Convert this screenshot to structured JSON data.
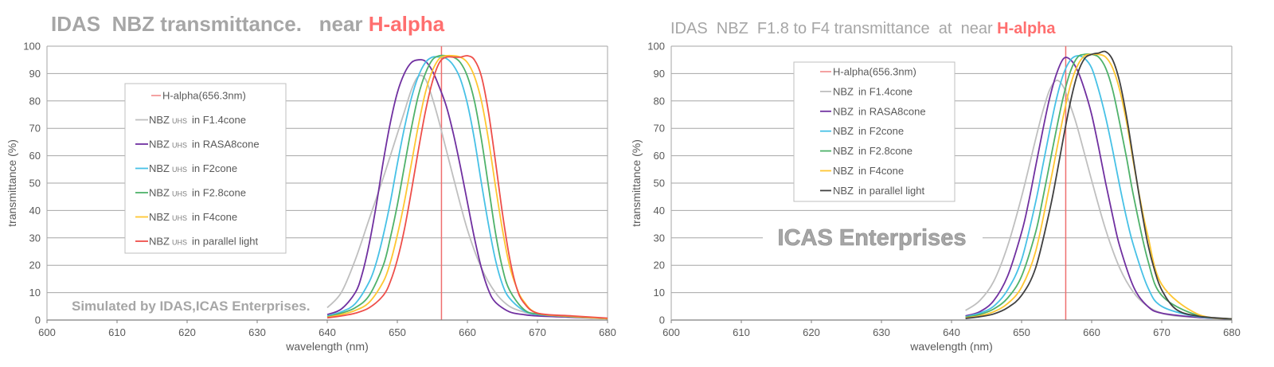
{
  "chart_data": [
    {
      "type": "line",
      "title": "IDAS  NBZ transmittance.   near",
      "title_highlight": "H-alpha",
      "xlabel": "wavelength (nm)",
      "ylabel": "transmittance (%)",
      "xlim": [
        600,
        680
      ],
      "ylim": [
        0,
        100
      ],
      "xticks": [
        "600",
        "610",
        "620",
        "630",
        "640",
        "650",
        "660",
        "670",
        "680"
      ],
      "yticks": [
        "0",
        "10",
        "20",
        "30",
        "40",
        "50",
        "60",
        "70",
        "80",
        "90",
        "100"
      ],
      "grid": true,
      "legend_position": "left",
      "annotation": "Simulated by IDAS,ICAS Enterprises.",
      "marker_line": {
        "name": "H-alpha(656.3nm)",
        "x": 656.3,
        "color": "#ef6f6f"
      },
      "series": [
        {
          "name": "NBZ",
          "sub": "UHS",
          "suffix": "in F1.4cone",
          "color": "#bfbfbf",
          "x": [
            640,
            642,
            644,
            646,
            648,
            650,
            651,
            652,
            653,
            654,
            655,
            656,
            658,
            660,
            662,
            664,
            666,
            668,
            670,
            675,
            680
          ],
          "y": [
            4.5,
            10,
            22,
            37,
            52,
            68,
            76,
            84,
            89,
            88,
            81,
            72,
            52,
            33,
            19,
            10,
            5,
            3,
            2,
            1.2,
            0.5
          ]
        },
        {
          "name": "NBZ",
          "sub": "UHS",
          "suffix": "in RASA8cone",
          "color": "#7030a0",
          "x": [
            640,
            642,
            644,
            645,
            646,
            647,
            648,
            649,
            650,
            651,
            652,
            653,
            654,
            655,
            656,
            657,
            658,
            659,
            660,
            661,
            662,
            663,
            664,
            666,
            668,
            670,
            675,
            680
          ],
          "y": [
            2,
            4,
            10,
            17,
            28,
            42,
            58,
            72,
            83,
            90,
            94,
            95,
            94.5,
            91,
            85,
            78,
            68,
            56,
            43,
            30,
            19,
            11,
            6.5,
            3,
            2,
            1.5,
            1,
            0.5
          ]
        },
        {
          "name": "NBZ",
          "sub": "UHS",
          "suffix": "in F2cone",
          "color": "#47c1e6",
          "x": [
            640,
            642,
            644,
            646,
            647,
            648,
            649,
            650,
            651,
            652,
            653,
            654,
            655,
            656,
            657,
            658,
            659,
            660,
            661,
            662,
            663,
            664,
            665,
            666,
            668,
            670,
            675,
            680
          ],
          "y": [
            1.5,
            3,
            6,
            14,
            21,
            31,
            43,
            57,
            70,
            81,
            89,
            94,
            96,
            96,
            95.5,
            93,
            88,
            79,
            66,
            50,
            35,
            22,
            13,
            8,
            3.5,
            2,
            1.2,
            0.5
          ]
        },
        {
          "name": "NBZ",
          "sub": "UHS",
          "suffix": "in F2.8cone",
          "color": "#4fb26a",
          "x": [
            640,
            642,
            644,
            646,
            648,
            649,
            650,
            651,
            652,
            653,
            654,
            655,
            656,
            657,
            658,
            659,
            660,
            661,
            662,
            663,
            664,
            665,
            666,
            668,
            670,
            675,
            680
          ],
          "y": [
            1.2,
            2.5,
            4.5,
            9,
            20,
            30,
            42,
            56,
            70,
            82,
            90,
            95,
            96.5,
            96.5,
            96,
            94,
            89,
            80,
            66,
            49,
            32,
            19,
            11,
            4,
            2.2,
            1.2,
            0.5
          ]
        },
        {
          "name": "NBZ",
          "sub": "UHS",
          "suffix": "in F4cone",
          "color": "#ffc631",
          "x": [
            640,
            642,
            644,
            646,
            648,
            649,
            650,
            651,
            652,
            653,
            654,
            655,
            656,
            657,
            658,
            659,
            660,
            661,
            662,
            663,
            664,
            665,
            666,
            667,
            668,
            670,
            675,
            680
          ],
          "y": [
            1,
            2,
            3.5,
            6.5,
            14,
            21,
            31,
            43,
            57,
            71,
            83,
            91,
            95.5,
            96.5,
            96.5,
            96,
            94,
            89,
            80,
            66,
            49,
            33,
            20,
            12,
            7,
            2.5,
            1.3,
            0.5
          ]
        },
        {
          "name": "NBZ",
          "sub": "UHS",
          "suffix": "in parallel light",
          "color": "#ee4f4a",
          "x": [
            640,
            642,
            644,
            646,
            648,
            649,
            650,
            651,
            652,
            653,
            654,
            655,
            656,
            657,
            658,
            659,
            660,
            661,
            662,
            663,
            664,
            665,
            666,
            667,
            668,
            670,
            675,
            680
          ],
          "y": [
            0.8,
            1.5,
            2.5,
            4.5,
            9,
            14,
            22,
            33,
            47,
            62,
            76,
            87,
            94,
            96,
            96,
            96,
            96.5,
            95,
            89,
            76,
            58,
            39,
            23,
            12,
            6.5,
            2.5,
            1.5,
            0.7
          ]
        }
      ]
    },
    {
      "type": "line",
      "title": "IDAS  NBZ  F1.8 to F4 transmittance  at  near",
      "title_highlight": "H-alpha",
      "xlabel": "wavelength (nm)",
      "ylabel": "transmittance (%)",
      "xlim": [
        600,
        680
      ],
      "ylim": [
        0,
        100
      ],
      "xticks": [
        "600",
        "610",
        "620",
        "630",
        "640",
        "650",
        "660",
        "670",
        "680"
      ],
      "yticks": [
        "0",
        "10",
        "20",
        "30",
        "40",
        "50",
        "60",
        "70",
        "80",
        "90",
        "100"
      ],
      "grid": true,
      "legend_position": "top-center",
      "annotation": "ICAS Enterprises",
      "marker_line": {
        "name": "H-alpha(656.3nm)",
        "x": 656.3,
        "color": "#ef6f6f"
      },
      "series": [
        {
          "name": "NBZ",
          "suffix": "in F1.4cone",
          "color": "#bfbfbf",
          "x": [
            642,
            644,
            646,
            648,
            650,
            652,
            653,
            654,
            655,
            656,
            657,
            658,
            660,
            662,
            664,
            666,
            668,
            670,
            672,
            675,
            680
          ],
          "y": [
            3.5,
            7,
            14,
            27,
            45,
            66,
            76,
            84,
            87.5,
            85,
            78,
            70,
            51,
            33,
            19,
            10,
            5,
            2.5,
            1.5,
            1,
            0.4
          ]
        },
        {
          "name": "NBZ",
          "suffix": "in RASA8cone",
          "color": "#7030a0",
          "x": [
            642,
            644,
            646,
            648,
            650,
            651,
            652,
            653,
            654,
            655,
            656,
            657,
            658,
            659,
            660,
            661,
            662,
            663,
            664,
            666,
            668,
            670,
            675,
            680
          ],
          "y": [
            1.5,
            3,
            7,
            16,
            32,
            43,
            56,
            69,
            81,
            90,
            95.5,
            95,
            91,
            84,
            75,
            63,
            50,
            38,
            27,
            12,
            5,
            2.5,
            1,
            0.3
          ]
        },
        {
          "name": "NBZ",
          "suffix": "in F2cone",
          "color": "#47c1e6",
          "x": [
            642,
            644,
            646,
            648,
            650,
            652,
            653,
            654,
            655,
            656,
            657,
            658,
            659,
            660,
            661,
            662,
            663,
            664,
            665,
            666,
            668,
            670,
            675,
            680
          ],
          "y": [
            1.2,
            2.5,
            5,
            11,
            22,
            43,
            56,
            69,
            81,
            90,
            95,
            96.5,
            95.5,
            92,
            84,
            74,
            62,
            49,
            37,
            27,
            12,
            5,
            1.3,
            0.4
          ]
        },
        {
          "name": "NBZ",
          "suffix": "in F2.8cone",
          "color": "#4fb26a",
          "x": [
            642,
            644,
            646,
            648,
            650,
            652,
            653,
            654,
            655,
            656,
            657,
            658,
            659,
            660,
            661,
            662,
            663,
            664,
            665,
            666,
            668,
            670,
            675,
            680
          ],
          "y": [
            1,
            2,
            4,
            8,
            16,
            32,
            44,
            57,
            70,
            82,
            91,
            96,
            97,
            97,
            96,
            92,
            84,
            72,
            59,
            45,
            22,
            9,
            1.8,
            0.4
          ]
        },
        {
          "name": "NBZ",
          "suffix": "in F4cone",
          "color": "#ffc631",
          "x": [
            642,
            644,
            646,
            648,
            650,
            652,
            654,
            655,
            656,
            657,
            658,
            659,
            660,
            661,
            662,
            663,
            664,
            665,
            666,
            667,
            668,
            670,
            675,
            680
          ],
          "y": [
            0.8,
            1.5,
            3,
            6,
            12,
            25,
            49,
            62,
            75,
            86,
            93,
            96.5,
            97,
            97,
            96,
            92,
            84,
            72,
            57,
            43,
            31,
            13,
            2.3,
            0.4
          ]
        },
        {
          "name": "NBZ",
          "suffix": "in parallel light",
          "color": "#404040",
          "x": [
            642,
            644,
            646,
            648,
            650,
            652,
            654,
            655,
            656,
            657,
            658,
            659,
            660,
            661,
            662,
            663,
            664,
            665,
            666,
            667,
            668,
            669,
            670,
            672,
            675,
            680
          ],
          "y": [
            0.6,
            1.2,
            2.2,
            4.5,
            9,
            19,
            40,
            53,
            67,
            80,
            90,
            95.5,
            97,
            97.5,
            98,
            95,
            87,
            74,
            58,
            42,
            28,
            18,
            11,
            4,
            1.5,
            0.4
          ]
        }
      ]
    }
  ]
}
